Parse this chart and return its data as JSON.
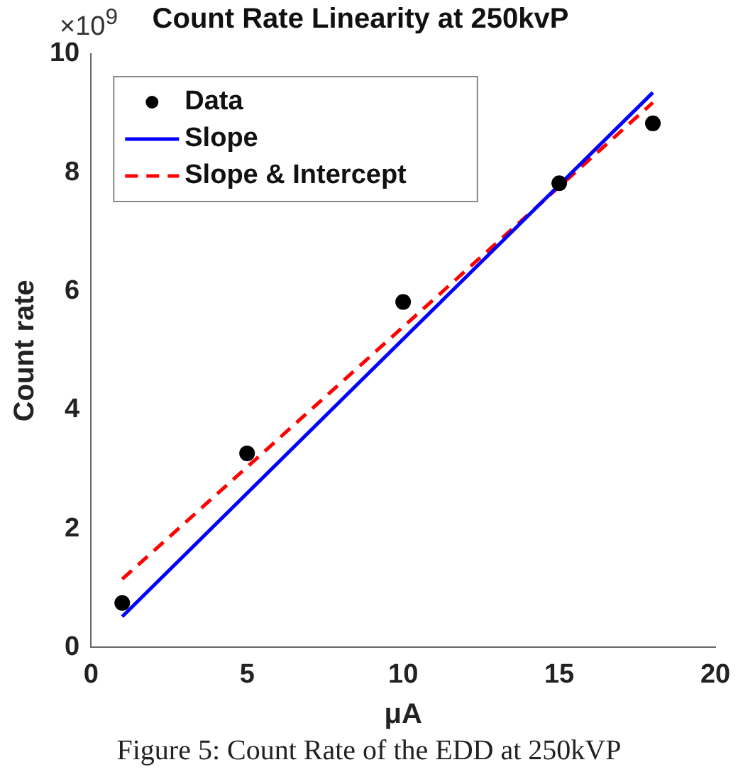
{
  "chart_data": {
    "type": "scatter",
    "title": "Count Rate Linearity at 250kvP",
    "xlabel": "μA",
    "ylabel": "Count rate",
    "annotations": [
      "×10$^{9}$",
      "Figure 5: Count Rate of the EDD at 250kVP"
    ],
    "series": [
      {
        "name": "Data",
        "type": "scatter",
        "color": "#000000",
        "marker": "circle",
        "x": [
          1,
          5,
          10,
          15,
          18
        ],
        "values": [
          0.75,
          3.27,
          5.82,
          7.82,
          8.83
        ]
      },
      {
        "name": "Slope",
        "type": "line",
        "color": "#0000ff",
        "marker": "none",
        "line_style": "solid",
        "x": [
          1,
          18
        ],
        "values": [
          0.52,
          9.35
        ]
      },
      {
        "name": "Slope & Intercept",
        "type": "line",
        "color": "#ff0000",
        "marker": "none",
        "line_style": "dashed",
        "x": [
          1,
          18
        ],
        "values": [
          1.15,
          9.18
        ]
      }
    ],
    "xlim": [
      0,
      20
    ],
    "xticks": [
      0,
      5,
      10,
      15,
      20
    ],
    "ylim": [
      0,
      10
    ],
    "yticks": [
      0,
      2,
      4,
      6,
      8,
      10
    ],
    "grid": false,
    "legend": "top left"
  }
}
